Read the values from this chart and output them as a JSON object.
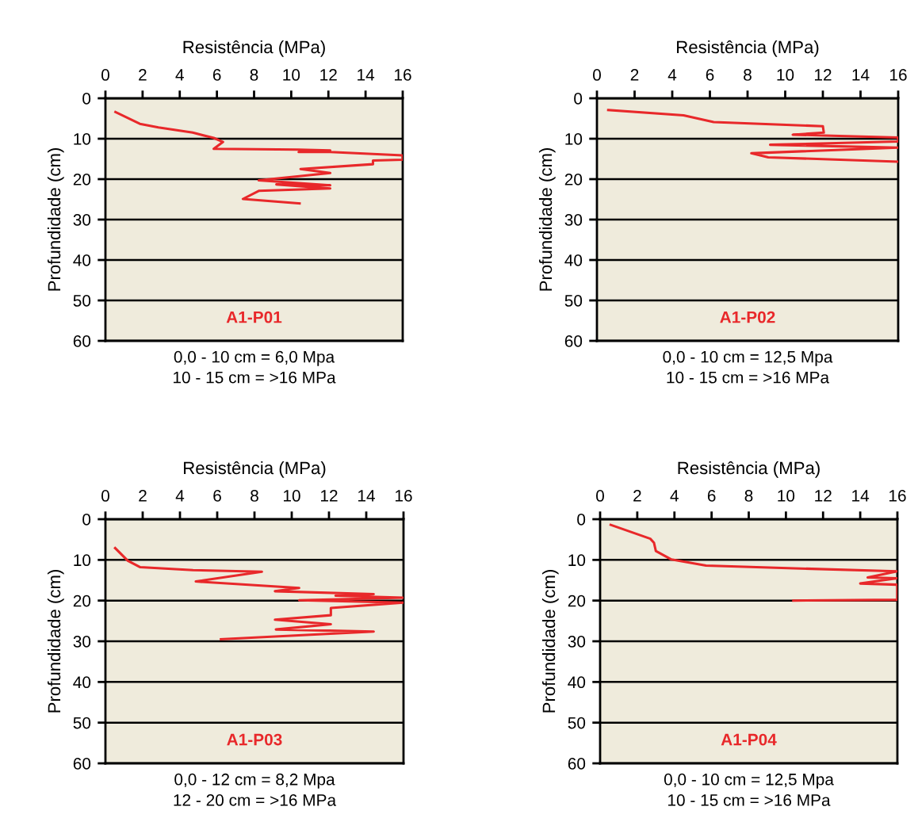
{
  "chart_data": [
    {
      "type": "line",
      "title": "A1-P01",
      "xlabel": "Resistência (MPa)",
      "ylabel": "Profundidade (cm)",
      "annotations": [
        "0,0 - 10 cm = 6,0 Mpa",
        "10 - 15 cm = >16 MPa"
      ],
      "xlim": [
        0,
        16
      ],
      "xticks": [
        0,
        2,
        4,
        6,
        8,
        10,
        12,
        14,
        16
      ],
      "ylim": [
        60,
        0
      ],
      "yticks": [
        0,
        10,
        20,
        30,
        40,
        50,
        60
      ],
      "grid": "y",
      "marker": "none",
      "line_style": "solid",
      "series": [
        {
          "color": "#e8282a",
          "x": [
            0.54,
            1.85,
            2.85,
            4.7,
            5.83,
            6.33,
            5.83,
            10.4,
            12.1,
            10.4,
            12.1,
            16,
            16,
            14.4,
            14.4,
            10.5,
            12.1,
            8.25,
            12.1,
            9.2,
            12.1,
            8.25,
            7.4,
            10.45
          ],
          "values": [
            3.4,
            6.3,
            7.2,
            8.5,
            9.8,
            10.8,
            12.5,
            12.7,
            12.9,
            13.3,
            13.3,
            14.1,
            15.2,
            15.4,
            16.3,
            17.5,
            18.5,
            20.3,
            21.5,
            21.3,
            22.3,
            22.9,
            24.9,
            26.0
          ]
        }
      ]
    },
    {
      "type": "line",
      "title": "A1-P02",
      "xlabel": "Resistência (MPa)",
      "ylabel": "Profundidade (cm)",
      "annotations": [
        "0,0 - 10 cm = 12,5 Mpa",
        "10 - 15 cm = >16 MPa"
      ],
      "xlim": [
        0,
        16
      ],
      "xticks": [
        0,
        2,
        4,
        6,
        8,
        10,
        12,
        14,
        16
      ],
      "ylim": [
        60,
        0
      ],
      "yticks": [
        0,
        10,
        20,
        30,
        40,
        50,
        60
      ],
      "grid": "y",
      "marker": "none",
      "line_style": "solid",
      "series": [
        {
          "color": "#e8282a",
          "x": [
            0.6,
            4.6,
            6.2,
            12.0,
            12.05,
            10.4,
            12.1,
            16,
            16,
            9.2,
            16,
            8.2,
            9.1,
            16
          ],
          "values": [
            2.9,
            4.2,
            5.9,
            6.9,
            8.5,
            9.0,
            9.2,
            9.7,
            10.7,
            11.5,
            12.2,
            13.6,
            14.6,
            15.7
          ]
        }
      ]
    },
    {
      "type": "line",
      "title": "A1-P03",
      "xlabel": "Resistência (MPa)",
      "ylabel": "Profundidade (cm)",
      "annotations": [
        "0,0 - 12 cm = 8,2 Mpa",
        "12 - 20 cm = >16 MPa"
      ],
      "xlim": [
        0,
        16
      ],
      "xticks": [
        0,
        2,
        4,
        6,
        8,
        10,
        12,
        14,
        16
      ],
      "ylim": [
        60,
        0
      ],
      "yticks": [
        0,
        10,
        20,
        30,
        40,
        50,
        60
      ],
      "grid": "y",
      "marker": "none",
      "line_style": "solid",
      "series": [
        {
          "color": "#e8282a",
          "x": [
            0.52,
            1.2,
            1.87,
            4.7,
            8.4,
            4.85,
            10.4,
            9.1,
            14.4,
            12.35,
            16,
            10.4,
            16,
            12.1,
            12.1,
            9.1,
            12.1,
            9.15,
            14.4,
            6.2
          ],
          "values": [
            7.1,
            10.2,
            11.8,
            12.5,
            12.9,
            15.3,
            16.9,
            17.7,
            18.4,
            18.8,
            19.3,
            19.9,
            20.5,
            21.8,
            23.6,
            24.7,
            25.8,
            27.1,
            27.6,
            29.5
          ]
        }
      ]
    },
    {
      "type": "line",
      "title": "A1-P04",
      "xlabel": "Resistência (MPa)",
      "ylabel": "Profundidade (cm)",
      "annotations": [
        "0,0 - 10 cm = 12,5 Mpa",
        "10 - 15 cm = >16 MPa"
      ],
      "xlim": [
        0,
        16
      ],
      "xticks": [
        0,
        2,
        4,
        6,
        8,
        10,
        12,
        14,
        16
      ],
      "ylim": [
        60,
        0
      ],
      "yticks": [
        0,
        10,
        20,
        30,
        40,
        50,
        60
      ],
      "grid": "y",
      "marker": "none",
      "line_style": "solid",
      "series": [
        {
          "color": "#e8282a",
          "x": [
            0.57,
            2.7,
            2.9,
            3.0,
            3.84,
            5.7,
            11.4,
            16,
            14.4,
            16,
            14.0,
            16,
            16,
            10.4
          ],
          "values": [
            1.4,
            4.8,
            5.8,
            7.8,
            9.9,
            11.4,
            12.2,
            12.8,
            14.3,
            14.5,
            15.8,
            16.1,
            19.8,
            20.0
          ]
        }
      ]
    }
  ]
}
